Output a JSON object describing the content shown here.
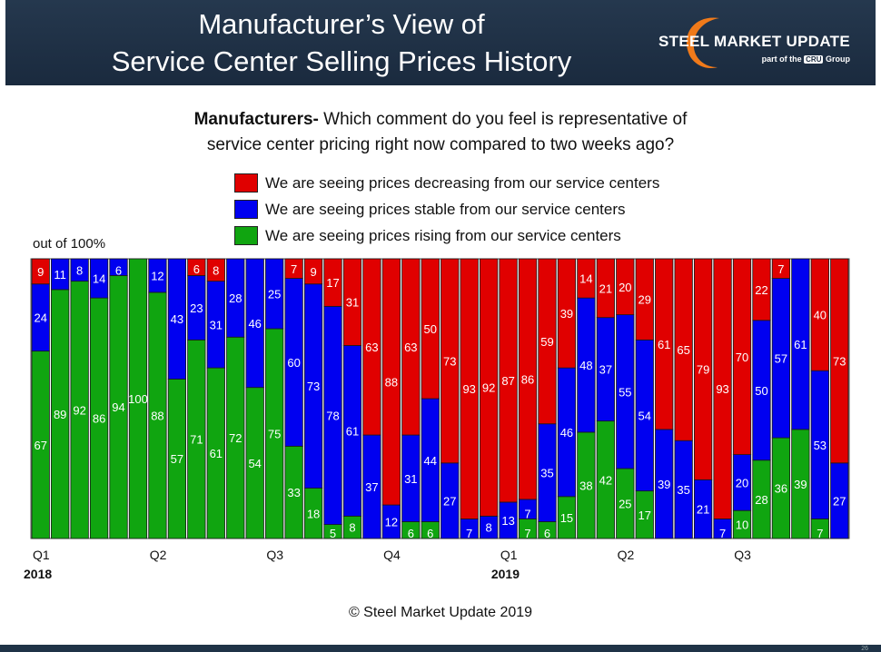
{
  "header": {
    "title_line1": "Manufacturer’s View of",
    "title_line2": "Service Center Selling Prices History",
    "brand_name": "STEEL MARKET UPDATE",
    "brand_sub_prefix": "part of the",
    "brand_badge": "CRU",
    "brand_sub_suffix": "Group"
  },
  "question": {
    "lead": "Manufacturers-",
    "line1": " Which comment do you feel is representative of",
    "line2": "service center pricing right now compared to two weeks ago?"
  },
  "y_note": "out of 100%",
  "copyright": "© Steel Market Update 2019",
  "page_number": "26",
  "chart_data": {
    "type": "bar",
    "stacked": true,
    "percent": true,
    "title": "Manufacturer’s View of Service Center Selling Prices History",
    "ylabel": "out of 100%",
    "ylim": [
      0,
      100
    ],
    "colors": {
      "decreasing": "#e00000",
      "stable": "#0000f0",
      "rising": "#10a510"
    },
    "legend": [
      {
        "key": "decreasing",
        "label": "We are seeing prices decreasing from our service centers"
      },
      {
        "key": "stable",
        "label": "We are seeing prices stable from our service centers"
      },
      {
        "key": "rising",
        "label": "We are seeing prices rising from our service centers"
      }
    ],
    "x_ticks": [
      {
        "index": 0,
        "label": "Q1",
        "year": "2018"
      },
      {
        "index": 6,
        "label": "Q2"
      },
      {
        "index": 12,
        "label": "Q3"
      },
      {
        "index": 18,
        "label": "Q4"
      },
      {
        "index": 24,
        "label": "Q1",
        "year": "2019"
      },
      {
        "index": 30,
        "label": "Q2"
      },
      {
        "index": 36,
        "label": "Q3"
      }
    ],
    "series": [
      {
        "name": "rising",
        "values": [
          67,
          89,
          92,
          86,
          94,
          100,
          88,
          57,
          71,
          61,
          72,
          54,
          75,
          33,
          18,
          5,
          8,
          0,
          0,
          6,
          6,
          0,
          0,
          0,
          0,
          7,
          6,
          15,
          38,
          42,
          25,
          17,
          0,
          0,
          0,
          0,
          10,
          28,
          36,
          39,
          7,
          0
        ]
      },
      {
        "name": "stable",
        "values": [
          24,
          11,
          8,
          14,
          6,
          0,
          12,
          43,
          23,
          31,
          28,
          46,
          25,
          60,
          73,
          78,
          61,
          37,
          12,
          31,
          44,
          27,
          7,
          8,
          13,
          7,
          35,
          46,
          48,
          37,
          55,
          54,
          39,
          35,
          21,
          7,
          20,
          50,
          57,
          61,
          53,
          27
        ]
      },
      {
        "name": "decreasing",
        "values": [
          9,
          0,
          0,
          0,
          0,
          0,
          0,
          0,
          6,
          8,
          0,
          0,
          0,
          7,
          9,
          17,
          31,
          63,
          88,
          63,
          50,
          73,
          93,
          92,
          87,
          86,
          59,
          39,
          14,
          21,
          20,
          29,
          61,
          65,
          79,
          93,
          70,
          22,
          7,
          0,
          40,
          73
        ]
      }
    ]
  }
}
